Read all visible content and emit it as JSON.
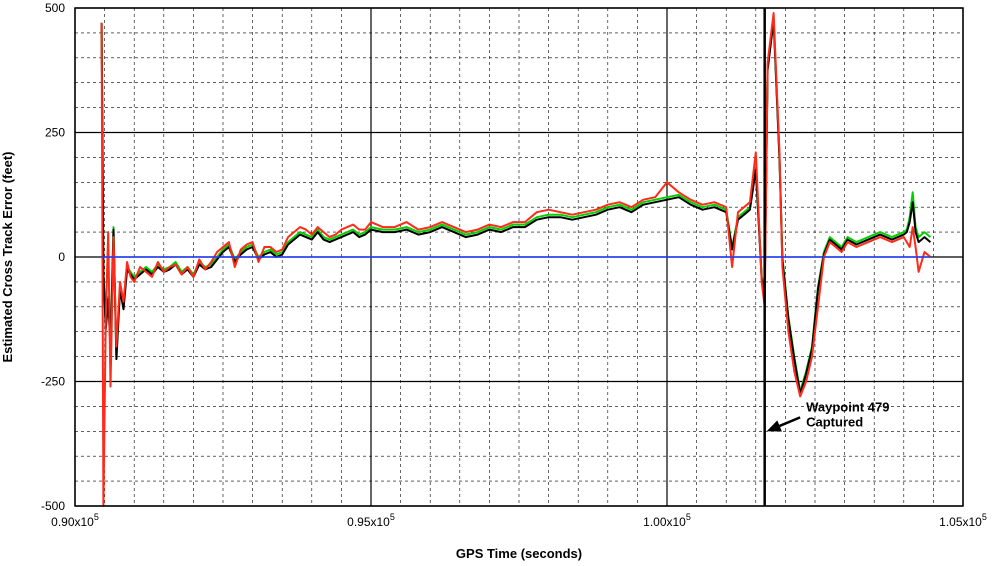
{
  "chart_data": {
    "type": "line",
    "title": "",
    "xlabel": "GPS Time (seconds)",
    "ylabel": "Estimated Cross Track Error (feet)",
    "xlim": [
      90000,
      105000
    ],
    "ylim": [
      -500,
      500
    ],
    "x_ticks": [
      {
        "value": 90000,
        "base": "0.90x10",
        "exp": "5"
      },
      {
        "value": 95000,
        "base": "0.95x10",
        "exp": "5"
      },
      {
        "value": 100000,
        "base": "1.00x10",
        "exp": "5"
      },
      {
        "value": 105000,
        "base": "1.05x10",
        "exp": "5"
      }
    ],
    "y_ticks": [
      {
        "value": 500,
        "label": "500"
      },
      {
        "value": 250,
        "label": "250"
      },
      {
        "value": 0,
        "label": "0"
      },
      {
        "value": -250,
        "label": "-250"
      },
      {
        "value": -500,
        "label": "-500"
      }
    ],
    "grid": true,
    "vertical_markers": [
      101650
    ],
    "annotation": {
      "lines": [
        "Waypoint 479",
        "Captured"
      ],
      "target": [
        101650,
        -350
      ],
      "text_at": [
        102350,
        -310
      ]
    },
    "series": [
      {
        "color": "#00d000",
        "x": [
          90450,
          90480,
          90520,
          90560,
          90600,
          90650,
          90700,
          90760,
          90820,
          90880,
          90940,
          91000,
          91100,
          91200,
          91300,
          91400,
          91500,
          91600,
          91700,
          91800,
          91900,
          92000,
          92100,
          92200,
          92300,
          92400,
          92500,
          92600,
          92700,
          92800,
          92900,
          93000,
          93100,
          93200,
          93300,
          93400,
          93500,
          93600,
          93700,
          93800,
          93900,
          94000,
          94100,
          94200,
          94300,
          94400,
          94500,
          94600,
          94700,
          94800,
          94900,
          95000,
          95200,
          95400,
          95600,
          95800,
          96000,
          96200,
          96400,
          96600,
          96800,
          97000,
          97200,
          97400,
          97600,
          97800,
          98000,
          98200,
          98400,
          98600,
          98800,
          99000,
          99200,
          99400,
          99600,
          99800,
          100000,
          100200,
          100400,
          100600,
          100800,
          101000,
          101100,
          101200,
          101300,
          101400,
          101500,
          101550,
          101600,
          101650,
          101700,
          101800,
          101900,
          101950,
          102050,
          102150,
          102250,
          102350,
          102450,
          102550,
          102650,
          102750,
          102850,
          102950,
          103050,
          103200,
          103400,
          103600,
          103800,
          104000,
          104050,
          104100,
          104150,
          104200,
          104250,
          104350,
          104450
        ],
        "y": [
          470,
          -30,
          -140,
          -80,
          -180,
          60,
          -200,
          -60,
          -100,
          -20,
          -30,
          -40,
          -30,
          -20,
          -30,
          -15,
          -25,
          -20,
          -10,
          -30,
          -20,
          -35,
          -10,
          -20,
          -15,
          0,
          15,
          25,
          -5,
          10,
          20,
          25,
          0,
          10,
          15,
          5,
          10,
          30,
          40,
          50,
          45,
          40,
          55,
          40,
          35,
          40,
          45,
          50,
          55,
          45,
          50,
          60,
          55,
          55,
          60,
          50,
          55,
          65,
          55,
          45,
          50,
          60,
          55,
          65,
          65,
          80,
          85,
          85,
          80,
          85,
          90,
          100,
          105,
          95,
          110,
          115,
          120,
          125,
          110,
          100,
          105,
          95,
          20,
          80,
          90,
          100,
          180,
          70,
          -40,
          -60,
          380,
          480,
          200,
          0,
          -120,
          -200,
          -270,
          -230,
          -180,
          -60,
          10,
          40,
          30,
          20,
          40,
          30,
          40,
          50,
          40,
          50,
          55,
          80,
          130,
          60,
          40,
          50,
          40
        ]
      },
      {
        "color": "#000000",
        "x": [
          90450,
          90480,
          90520,
          90560,
          90600,
          90650,
          90700,
          90760,
          90820,
          90880,
          90940,
          91000,
          91100,
          91200,
          91300,
          91400,
          91500,
          91600,
          91700,
          91800,
          91900,
          92000,
          92100,
          92200,
          92300,
          92400,
          92500,
          92600,
          92700,
          92800,
          92900,
          93000,
          93100,
          93200,
          93300,
          93400,
          93500,
          93600,
          93700,
          93800,
          93900,
          94000,
          94100,
          94200,
          94300,
          94400,
          94500,
          94600,
          94700,
          94800,
          94900,
          95000,
          95200,
          95400,
          95600,
          95800,
          96000,
          96200,
          96400,
          96600,
          96800,
          97000,
          97200,
          97400,
          97600,
          97800,
          98000,
          98200,
          98400,
          98600,
          98800,
          99000,
          99200,
          99400,
          99600,
          99800,
          100000,
          100200,
          100400,
          100600,
          100800,
          101000,
          101100,
          101200,
          101300,
          101400,
          101500,
          101550,
          101600,
          101650,
          101700,
          101800,
          101900,
          101950,
          102050,
          102150,
          102250,
          102350,
          102450,
          102550,
          102650,
          102750,
          102850,
          102950,
          103050,
          103200,
          103400,
          103600,
          103800,
          104000,
          104050,
          104100,
          104150,
          104200,
          104250,
          104350,
          104450
        ],
        "y": [
          470,
          -35,
          -145,
          -85,
          -185,
          55,
          -205,
          -65,
          -105,
          -25,
          -35,
          -45,
          -35,
          -25,
          -35,
          -20,
          -30,
          -25,
          -15,
          -35,
          -25,
          -40,
          -15,
          -25,
          -20,
          -5,
          10,
          20,
          -10,
          5,
          15,
          20,
          -5,
          5,
          10,
          0,
          5,
          25,
          35,
          45,
          40,
          35,
          50,
          35,
          30,
          35,
          40,
          45,
          50,
          40,
          45,
          55,
          50,
          50,
          55,
          45,
          50,
          60,
          50,
          40,
          45,
          55,
          50,
          60,
          60,
          75,
          80,
          80,
          75,
          80,
          85,
          95,
          100,
          90,
          105,
          110,
          115,
          120,
          105,
          95,
          100,
          90,
          15,
          75,
          85,
          95,
          175,
          65,
          -45,
          -65,
          375,
          475,
          195,
          -5,
          -125,
          -205,
          -275,
          -235,
          -185,
          -65,
          5,
          35,
          25,
          15,
          35,
          25,
          35,
          45,
          35,
          45,
          50,
          70,
          110,
          50,
          30,
          40,
          30
        ]
      },
      {
        "color": "#ff2a1a",
        "x": [
          90450,
          90480,
          90520,
          90560,
          90600,
          90650,
          90700,
          90760,
          90820,
          90880,
          90940,
          91000,
          91100,
          91200,
          91300,
          91400,
          91500,
          91600,
          91700,
          91800,
          91900,
          92000,
          92100,
          92200,
          92300,
          92400,
          92500,
          92600,
          92700,
          92800,
          92900,
          93000,
          93100,
          93200,
          93300,
          93400,
          93500,
          93600,
          93700,
          93800,
          93900,
          94000,
          94100,
          94200,
          94300,
          94400,
          94500,
          94600,
          94700,
          94800,
          94900,
          95000,
          95200,
          95400,
          95600,
          95800,
          96000,
          96200,
          96400,
          96600,
          96800,
          97000,
          97200,
          97400,
          97600,
          97800,
          98000,
          98200,
          98400,
          98600,
          98800,
          99000,
          99200,
          99400,
          99600,
          99800,
          100000,
          100200,
          100400,
          100600,
          100800,
          101000,
          101100,
          101200,
          101300,
          101400,
          101500,
          101550,
          101600,
          101650,
          101700,
          101800,
          101900,
          101950,
          102050,
          102150,
          102250,
          102350,
          102450,
          102550,
          102650,
          102750,
          102850,
          102950,
          103050,
          103200,
          103400,
          103600,
          103800,
          104000,
          104050,
          104100,
          104150,
          104200,
          104250,
          104350,
          104450
        ],
        "y": [
          470,
          -500,
          -120,
          50,
          -260,
          40,
          -180,
          -50,
          -90,
          -10,
          -40,
          -50,
          -20,
          -30,
          -40,
          -10,
          -30,
          -20,
          -15,
          -35,
          -20,
          -40,
          -5,
          -25,
          -10,
          10,
          20,
          30,
          -20,
          15,
          25,
          30,
          -10,
          20,
          20,
          10,
          15,
          40,
          50,
          60,
          55,
          45,
          60,
          50,
          40,
          45,
          55,
          60,
          65,
          55,
          55,
          70,
          60,
          60,
          70,
          55,
          60,
          70,
          60,
          50,
          55,
          65,
          60,
          70,
          70,
          90,
          95,
          90,
          85,
          90,
          95,
          105,
          110,
          100,
          115,
          120,
          150,
          130,
          115,
          105,
          110,
          100,
          -20,
          90,
          100,
          110,
          210,
          80,
          -50,
          -100,
          390,
          490,
          210,
          -20,
          -150,
          -230,
          -280,
          -250,
          -200,
          -100,
          0,
          30,
          20,
          10,
          30,
          20,
          30,
          40,
          30,
          40,
          30,
          20,
          60,
          20,
          -30,
          10,
          0
        ]
      },
      {
        "color": "#1e3cff",
        "x": [
          90450,
          104450
        ],
        "y": [
          0,
          0
        ]
      }
    ]
  }
}
